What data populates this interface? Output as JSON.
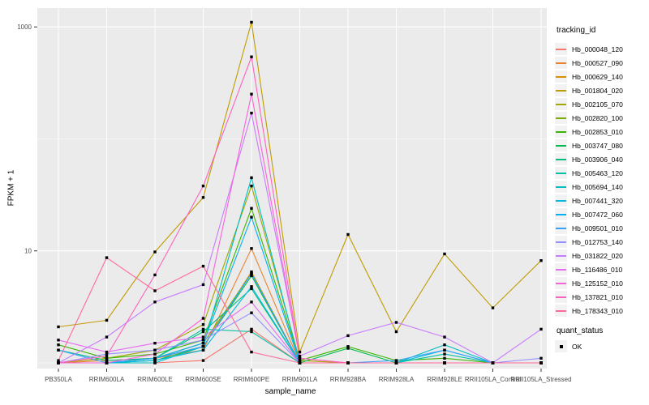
{
  "figure": {
    "background": "#FFFFFF"
  },
  "chart_data": {
    "type": "line",
    "title": "",
    "xlabel": "sample_name",
    "ylabel": "FPKM + 1",
    "y_scale": "log10",
    "ylim": [
      0.9,
      1300
    ],
    "grid": true,
    "panel_background": "#EBEBEB",
    "gridline_color": "#FFFFFF",
    "tick_color": "#333333",
    "point_color": "#000000",
    "y_major_ticks": [
      {
        "value": 10,
        "label": "10"
      },
      {
        "value": 1000,
        "label": "1000"
      }
    ],
    "y_minor_gridlines": [
      1,
      100
    ],
    "categories": [
      "PB350LA",
      "RRIM600LA",
      "RRIM600LE",
      "RRIM600SE",
      "RRIM600PE",
      "RRIM901LA",
      "RRIM928BA",
      "RRIM928LA",
      "RRIM928LE",
      "RRII105LA_Control",
      "RRII105LA_Stressed"
    ],
    "series": [
      {
        "id": "Hb_000048_120",
        "color": "#F8766D",
        "values": [
          1.0,
          1.0,
          1.0,
          1.05,
          2.0,
          1.0,
          1.0,
          1.0,
          1.0,
          1.0,
          1.0
        ]
      },
      {
        "id": "Hb_000527_090",
        "color": "#EA8331",
        "values": [
          1.0,
          1.05,
          1.1,
          1.3,
          10.5,
          1.0,
          1.0,
          1.0,
          1.0,
          1.0,
          1.0
        ]
      },
      {
        "id": "Hb_000629_140",
        "color": "#D89000",
        "values": [
          1.0,
          1.0,
          1.1,
          1.4,
          6.5,
          1.0,
          1.0,
          1.0,
          1.0,
          1.0,
          1.0
        ]
      },
      {
        "id": "Hb_001804_020",
        "color": "#C09B00",
        "values": [
          2.1,
          2.4,
          9.8,
          30,
          1100,
          1.25,
          14,
          1.9,
          9.4,
          3.1,
          8.2
        ]
      },
      {
        "id": "Hb_002105_070",
        "color": "#A3A500",
        "values": [
          1.0,
          1.1,
          1.3,
          2.2,
          38,
          1.05,
          1.0,
          1.0,
          1.0,
          1.0,
          1.0
        ]
      },
      {
        "id": "Hb_002820_100",
        "color": "#7CAE00",
        "values": [
          1.0,
          1.0,
          1.1,
          1.5,
          6.3,
          1.0,
          1.0,
          1.0,
          1.0,
          1.0,
          1.0
        ]
      },
      {
        "id": "Hb_002853_010",
        "color": "#39B600",
        "values": [
          1.45,
          1.1,
          1.2,
          1.6,
          24,
          1.05,
          1.4,
          1.05,
          1.1,
          1.0,
          1.0
        ]
      },
      {
        "id": "Hb_003747_080",
        "color": "#00BB4E",
        "values": [
          1.0,
          1.0,
          1.05,
          1.4,
          6.0,
          1.0,
          1.35,
          1.0,
          1.0,
          1.0,
          1.0
        ]
      },
      {
        "id": "Hb_003906_040",
        "color": "#00BF7D",
        "values": [
          1.3,
          1.05,
          1.1,
          1.9,
          4.6,
          1.0,
          1.0,
          1.0,
          1.0,
          1.0,
          1.0
        ]
      },
      {
        "id": "Hb_005463_120",
        "color": "#00C1A3",
        "values": [
          1.0,
          1.0,
          1.1,
          2.0,
          1.9,
          1.0,
          1.0,
          1.0,
          1.2,
          1.0,
          1.0
        ]
      },
      {
        "id": "Hb_005694_140",
        "color": "#00BFC4",
        "values": [
          1.0,
          1.0,
          1.0,
          1.4,
          45,
          1.0,
          1.0,
          1.0,
          1.45,
          1.0,
          1.0
        ]
      },
      {
        "id": "Hb_007441_320",
        "color": "#00BAE0",
        "values": [
          1.0,
          1.0,
          1.05,
          1.3,
          4.8,
          1.0,
          1.0,
          1.0,
          1.3,
          1.0,
          1.0
        ]
      },
      {
        "id": "Hb_007472_060",
        "color": "#00B0F6",
        "values": [
          1.0,
          1.0,
          1.1,
          1.5,
          20,
          1.0,
          1.0,
          1.0,
          1.0,
          1.0,
          1.0
        ]
      },
      {
        "id": "Hb_009501_010",
        "color": "#35A2FF",
        "values": [
          1.3,
          1.0,
          1.1,
          1.4,
          6.3,
          1.0,
          1.0,
          1.05,
          1.3,
          1.0,
          1.0
        ]
      },
      {
        "id": "Hb_012753_140",
        "color": "#9590FF",
        "values": [
          1.0,
          1.2,
          1.3,
          1.6,
          2.8,
          1.0,
          1.0,
          1.0,
          1.0,
          1.0,
          1.1
        ]
      },
      {
        "id": "Hb_031822_020",
        "color": "#C77CFF",
        "values": [
          1.0,
          1.7,
          3.5,
          5.0,
          170,
          1.15,
          1.75,
          2.3,
          1.7,
          1.0,
          2.0
        ]
      },
      {
        "id": "Hb_116486_010",
        "color": "#E76BF3",
        "values": [
          1.6,
          1.25,
          1.5,
          1.7,
          3.5,
          1.0,
          1.0,
          1.0,
          1.0,
          1.0,
          1.0
        ]
      },
      {
        "id": "Hb_125152_010",
        "color": "#FA62DB",
        "values": [
          1.0,
          1.0,
          1.2,
          2.5,
          251,
          1.1,
          1.0,
          1.0,
          1.0,
          1.0,
          1.0
        ]
      },
      {
        "id": "Hb_137821_010",
        "color": "#FF62BC",
        "values": [
          1.0,
          1.15,
          6.1,
          38,
          540,
          1.1,
          1.0,
          1.0,
          1.0,
          1.0,
          1.0
        ]
      },
      {
        "id": "Hb_178343_010",
        "color": "#FF6A98",
        "values": [
          1.05,
          8.7,
          4.4,
          7.3,
          1.25,
          1.0,
          1.0,
          1.0,
          1.0,
          1.0,
          1.0
        ]
      }
    ],
    "legend": {
      "position": "right",
      "title": "tracking_id",
      "key_background": "#F2F2F2",
      "quant": {
        "title": "quant_status",
        "items": [
          {
            "label": "OK",
            "shape": "square",
            "color": "#000000"
          }
        ]
      }
    }
  }
}
